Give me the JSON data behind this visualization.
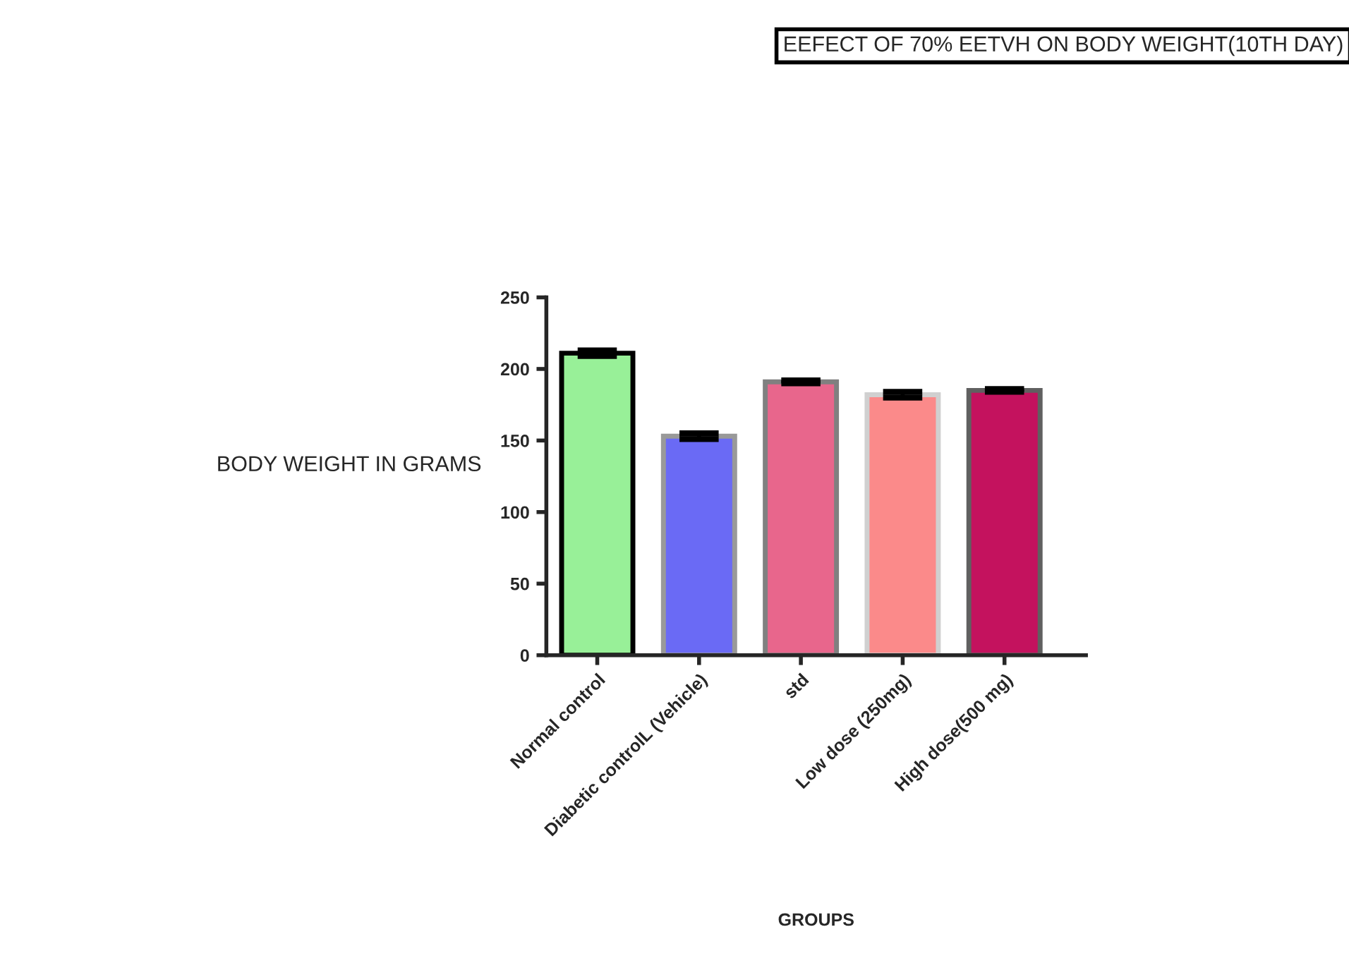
{
  "chart_data": {
    "type": "bar",
    "title": "EEFECT OF 70% EETVH ON BODY WEIGHT(10TH DAY)",
    "xlabel": "GROUPS",
    "ylabel": "BODY WEIGHT IN GRAMS",
    "categories": [
      "Normal control",
      "Diabetic controlL (Vehicle)",
      "std",
      "Low dose (250mg)",
      "High dose(500 mg)"
    ],
    "values": [
      211,
      153,
      191,
      182,
      185
    ],
    "errors": [
      2,
      2,
      1,
      2,
      1
    ],
    "colors": [
      "#98f098",
      "#6a6af5",
      "#e8668c",
      "#fb8a8a",
      "#c4125e"
    ],
    "ylim": [
      0,
      250
    ],
    "yticks": [
      0,
      50,
      100,
      150,
      200,
      250
    ],
    "grid": false,
    "legend": false
  }
}
